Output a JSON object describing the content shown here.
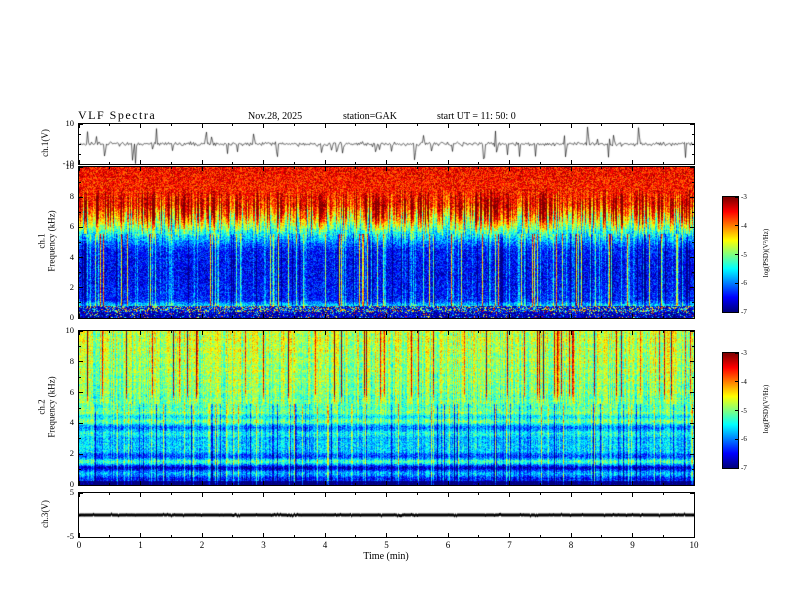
{
  "header": {
    "title": "VLF Spectra",
    "date": "Nov.28, 2025",
    "station": "station=GAK",
    "start_ut": "start UT =  11: 50: 0"
  },
  "chart_data": {
    "type": "heatmap",
    "subtype": "multi-panel VLF spectrogram figure",
    "xaxis": {
      "label": "Time (min)",
      "lim": [
        0,
        10
      ],
      "ticks": [
        0,
        1,
        2,
        3,
        4,
        5,
        6,
        7,
        8,
        9,
        10
      ]
    },
    "colorbar": {
      "label": "log(PSD)(V²/Hz)",
      "lim": [
        -3,
        -7
      ],
      "ticks": [
        -3,
        -4,
        -5,
        -6,
        -7
      ]
    },
    "panels": [
      {
        "id": "ch1_waveform",
        "type": "line",
        "ylabel": "ch.1(V)",
        "ylim": [
          -10,
          10
        ],
        "ytick_labels": [
          10,
          -10
        ],
        "yticks_minor": [
          5,
          0,
          -5
        ],
        "description": "Broadband noise around 0 V with frequent impulsive spikes up to about ±9 V"
      },
      {
        "id": "ch1_spectrogram",
        "type": "heatmap",
        "ylabel_lines": [
          "ch.1",
          "Frequency (kHz)"
        ],
        "ylim": [
          0,
          10
        ],
        "ytick_labels": [
          10,
          8,
          6,
          4,
          2,
          0
        ],
        "yticks_minor": [
          9,
          7,
          5,
          3,
          1
        ],
        "clim": [
          -7,
          -3
        ],
        "freq_profile": [
          [
            0.2,
            -6.8
          ],
          [
            0.55,
            -6.4
          ],
          [
            0.75,
            -5.4
          ],
          [
            1.2,
            -6.4
          ],
          [
            3,
            -6.55
          ],
          [
            4.5,
            -6.45
          ],
          [
            5.5,
            -5.7
          ],
          [
            6.5,
            -4.6
          ],
          [
            7.5,
            -3.7
          ],
          [
            10,
            -3.5
          ]
        ],
        "texture": "Intense red band 7-10 kHz with ragged lower edge reaching ~5 kHz; dark blue background below 5 kHz crossed by bright cyan/green vertical streaks; speckled multicolour band near 0.5-0.8 kHz"
      },
      {
        "id": "ch2_spectrogram",
        "type": "heatmap",
        "ylabel_lines": [
          "ch.2",
          "Frequency (kHz)"
        ],
        "ylim": [
          0,
          10
        ],
        "ytick_labels": [
          10,
          8,
          6,
          4,
          2,
          0
        ],
        "yticks_minor": [
          9,
          7,
          5,
          3,
          1
        ],
        "clim": [
          -7,
          -3
        ],
        "freq_profile": [
          [
            0.2,
            -6.6
          ],
          [
            0.6,
            -5.9
          ],
          [
            1.15,
            -6.5
          ],
          [
            1.6,
            -5.4
          ],
          [
            2.05,
            -6.3
          ],
          [
            2.5,
            -5.3
          ],
          [
            2.8,
            -6.1
          ],
          [
            3.2,
            -5.3
          ],
          [
            3.55,
            -6.0
          ],
          [
            4.2,
            -5.3
          ],
          [
            5,
            -5.15
          ],
          [
            6,
            -5.0
          ],
          [
            8,
            -4.85
          ],
          [
            10,
            -4.7
          ]
        ],
        "texture": "Yellow-green above ~5 kHz with sporadic red vertical streaks; fine horizontal striations and dark blue horizontal bands near 1.2, 2.1, 2.8 and 3.6 kHz; dark band at the bottom edge"
      },
      {
        "id": "ch3_waveform",
        "type": "line",
        "ylabel": "ch.3(V)",
        "ylim": [
          -5,
          5
        ],
        "ytick_labels": [
          5,
          -5
        ],
        "yticks_minor": [
          0
        ],
        "description": "Flat constant thick trace at 0 V"
      }
    ]
  }
}
